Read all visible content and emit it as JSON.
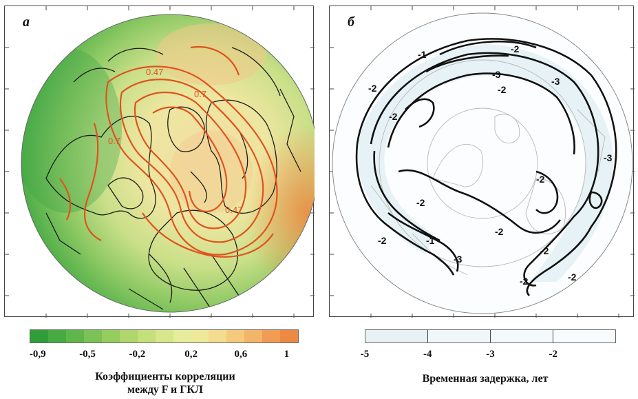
{
  "panel_a": {
    "letter": "а",
    "contour_labels": [
      "0.47",
      "0.7",
      "0.7",
      "0.47"
    ]
  },
  "panel_b": {
    "letter": "б",
    "contour_labels": [
      "-2",
      "-1",
      "-3",
      "-2",
      "-3",
      "-2",
      "-2",
      "-2",
      "-3",
      "-2",
      "-2",
      "-2",
      "-3",
      "-2",
      "-1",
      "-2",
      "-2"
    ]
  },
  "colorbar_a": {
    "colors": [
      "#2f9e3a",
      "#47ab44",
      "#5fb74c",
      "#7ac255",
      "#95cc5f",
      "#aed66b",
      "#c5df7a",
      "#d8e78c",
      "#e6ec9c",
      "#efe99a",
      "#f3dc8e",
      "#f4ca7c",
      "#f3b569",
      "#f09c54",
      "#ec8a43"
    ],
    "tick_labels": [
      {
        "text": "-0,9",
        "pos": 0.03
      },
      {
        "text": "-0,5",
        "pos": 0.215
      },
      {
        "text": "-0,2",
        "pos": 0.4
      },
      {
        "text": "0,2",
        "pos": 0.6
      },
      {
        "text": "0,6",
        "pos": 0.785
      },
      {
        "text": "1",
        "pos": 0.955
      }
    ],
    "title_line1": "Коэффициенты корреляции",
    "title_line2": "между F и ГКЛ"
  },
  "colorbar_b": {
    "colors": [
      "#e6f2f6",
      "#eff7f9",
      "#f4f9fb",
      "#f8fbfc"
    ],
    "tick_labels": [
      {
        "text": "-5",
        "pos": 0.0
      },
      {
        "text": "-4",
        "pos": 0.25
      },
      {
        "text": "-3",
        "pos": 0.5
      },
      {
        "text": "-2",
        "pos": 0.75
      }
    ],
    "title": "Временная задержка, лет"
  }
}
